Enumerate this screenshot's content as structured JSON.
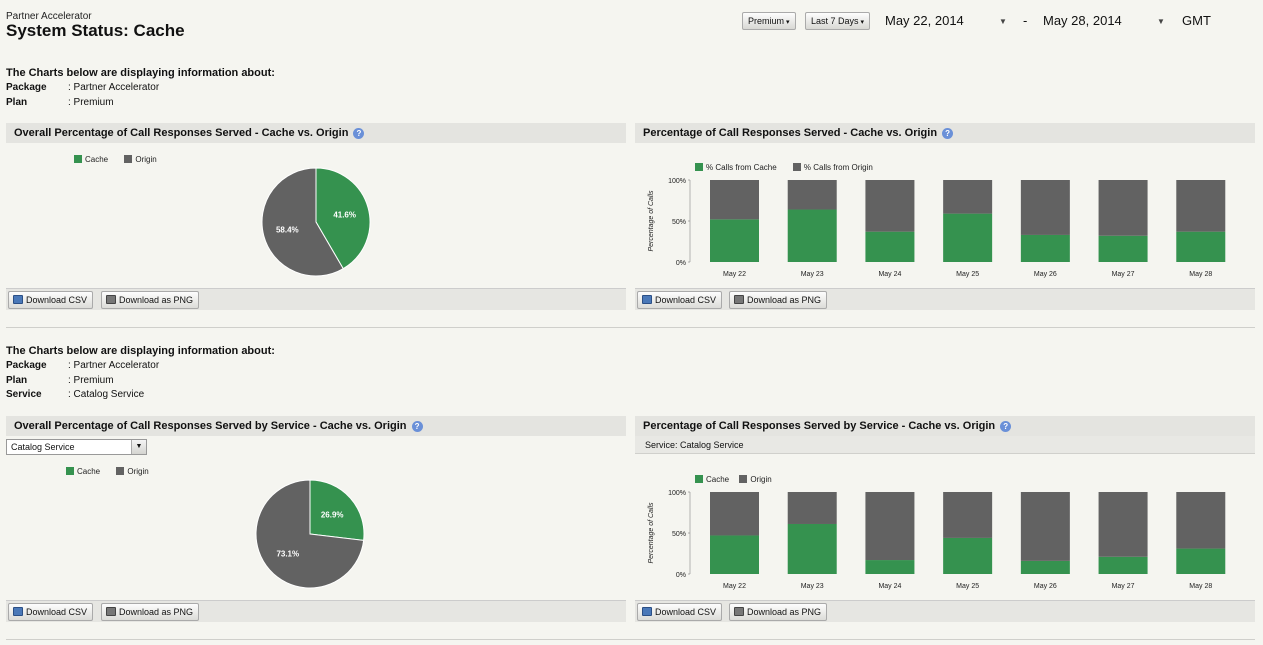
{
  "header": {
    "breadcrumb": "Partner Accelerator",
    "title": "System Status: Cache",
    "package_filter": "Premium",
    "range_filter": "Last 7 Days",
    "start_date": "May 22, 2014",
    "date_separator": "-",
    "end_date": "May 28, 2014",
    "timezone": "GMT"
  },
  "colors": {
    "cache": "#35924f",
    "origin": "#626262"
  },
  "section1": {
    "heading": "The Charts below are displaying information about:",
    "fields": [
      {
        "label": "Package",
        "value": ": Partner Accelerator"
      },
      {
        "label": "Plan",
        "value": ": Premium"
      }
    ],
    "pie_panel": {
      "title": "Overall Percentage of Call Responses Served - Cache vs. Origin",
      "legend": [
        "Cache",
        "Origin"
      ],
      "download_csv": "Download CSV",
      "download_png": "Download as PNG"
    },
    "bar_panel": {
      "title": "Percentage of Call Responses Served - Cache vs. Origin",
      "legend": [
        "% Calls from Cache",
        "% Calls from Origin"
      ],
      "ylabel": "Percentage of Calls",
      "download_csv": "Download CSV",
      "download_png": "Download as PNG"
    }
  },
  "section2": {
    "heading": "The Charts below are displaying information about:",
    "fields": [
      {
        "label": "Package",
        "value": ": Partner Accelerator"
      },
      {
        "label": "Plan",
        "value": ": Premium"
      },
      {
        "label": "Service",
        "value": ": Catalog Service"
      }
    ],
    "pie_panel": {
      "title": "Overall Percentage of Call Responses Served by Service - Cache vs. Origin",
      "select_value": "Catalog Service",
      "legend": [
        "Cache",
        "Origin"
      ],
      "download_csv": "Download CSV",
      "download_png": "Download as PNG"
    },
    "bar_panel": {
      "title": "Percentage of Call Responses Served by Service - Cache vs. Origin",
      "service_line": "Service: Catalog Service",
      "legend": [
        "Cache",
        "Origin"
      ],
      "ylabel": "Percentage of Calls",
      "download_csv": "Download CSV",
      "download_png": "Download as PNG"
    }
  },
  "chart_data": [
    {
      "type": "pie",
      "categories": [
        "Cache",
        "Origin"
      ],
      "values": [
        41.6,
        58.4
      ],
      "labels": [
        "41.6%",
        "58.4%"
      ]
    },
    {
      "type": "bar",
      "stacked": true,
      "categories": [
        "May 22",
        "May 23",
        "May 24",
        "May 25",
        "May 26",
        "May 27",
        "May 28"
      ],
      "series": [
        {
          "name": "% Calls from Cache",
          "values": [
            52,
            64,
            37,
            59,
            33,
            32,
            37
          ]
        },
        {
          "name": "% Calls from Origin",
          "values": [
            48,
            36,
            63,
            41,
            67,
            68,
            63
          ]
        }
      ],
      "ylabel": "Percentage of Calls",
      "yticks": [
        "0%",
        "50%",
        "100%"
      ],
      "ylim": [
        0,
        100
      ]
    },
    {
      "type": "pie",
      "categories": [
        "Cache",
        "Origin"
      ],
      "values": [
        26.9,
        73.1
      ],
      "labels": [
        "26.9%",
        "73.1%"
      ]
    },
    {
      "type": "bar",
      "stacked": true,
      "categories": [
        "May 22",
        "May 23",
        "May 24",
        "May 25",
        "May 26",
        "May 27",
        "May 28"
      ],
      "series": [
        {
          "name": "Cache",
          "values": [
            47,
            61,
            17,
            44,
            16,
            21,
            31
          ]
        },
        {
          "name": "Origin",
          "values": [
            53,
            39,
            83,
            56,
            84,
            79,
            69
          ]
        }
      ],
      "ylabel": "Percentage of Calls",
      "yticks": [
        "0%",
        "50%",
        "100%"
      ],
      "ylim": [
        0,
        100
      ]
    }
  ]
}
